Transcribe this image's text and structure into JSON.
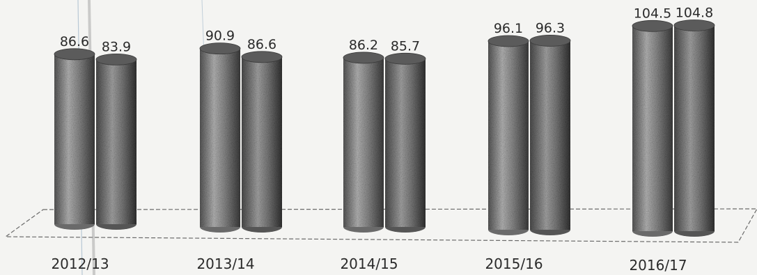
{
  "chart_data": {
    "type": "bar",
    "style": "3d-cylinder",
    "categories": [
      "2012/13",
      "2013/14",
      "2014/15",
      "2015/16",
      "2016/17"
    ],
    "series": [
      {
        "values": [
          86.6,
          90.9,
          86.2,
          96.1,
          104.5
        ]
      },
      {
        "values": [
          83.9,
          86.6,
          85.7,
          96.3,
          104.8
        ]
      }
    ],
    "data_labels": [
      [
        "86.6",
        "90.9",
        "86.2",
        "96.1",
        "104.5"
      ],
      [
        "83.9",
        "86.6",
        "85.7",
        "96.3",
        "104.8"
      ]
    ],
    "ylim": [
      0,
      110
    ],
    "grid": false,
    "legend": "none",
    "colors": {
      "bar_dark": "#3a3a3a",
      "bar_light": "#c8c8c8",
      "floor": "#555555"
    }
  }
}
